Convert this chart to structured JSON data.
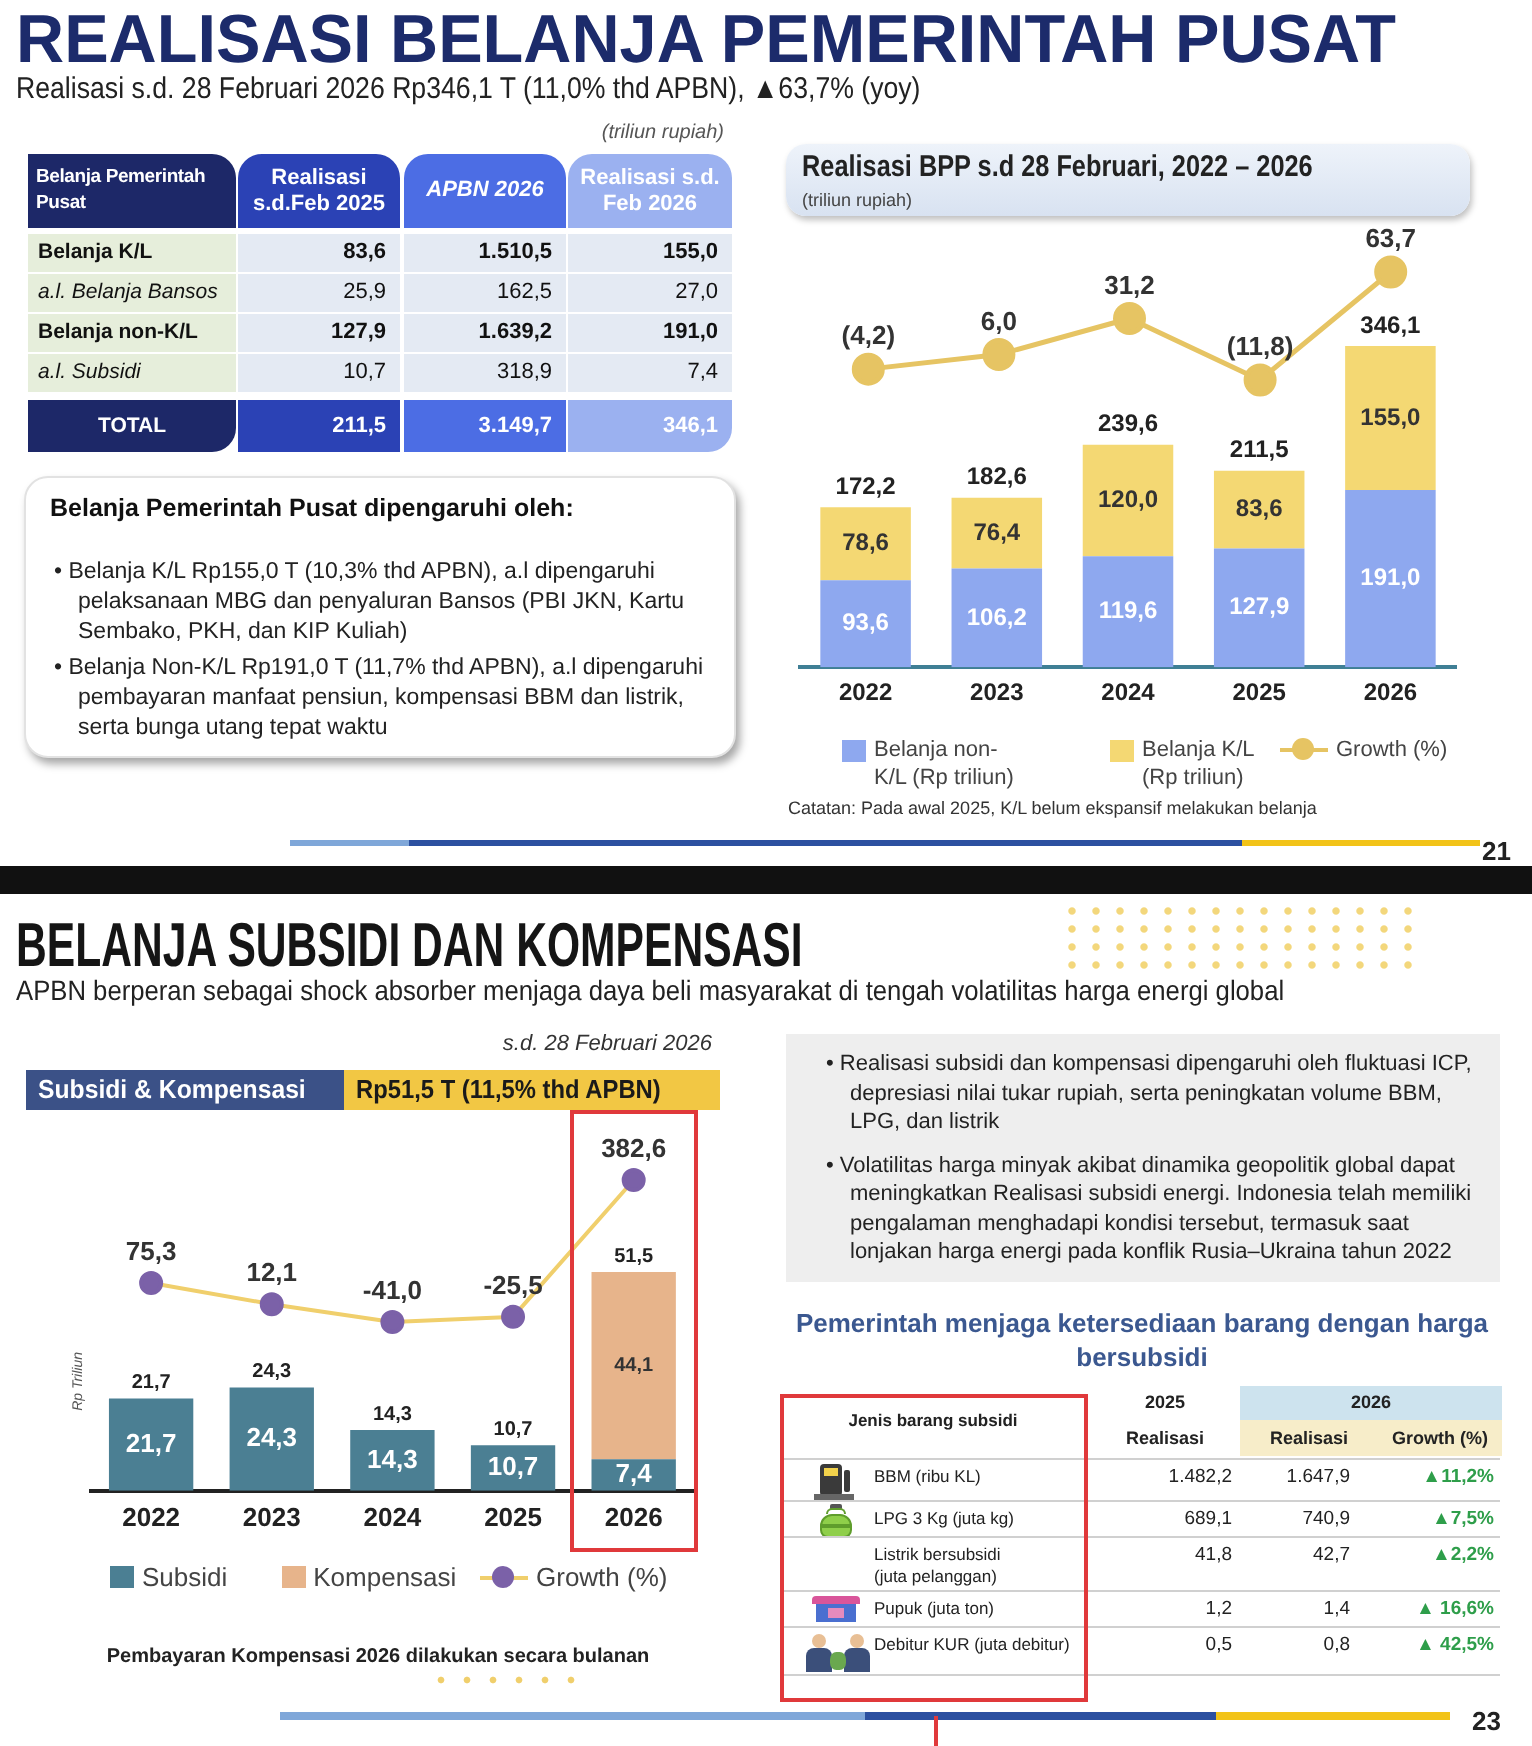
{
  "chart_data": [
    {
      "type": "other",
      "title": "REALISASI BELANJA PEMERINTAH PUSAT",
      "subtitle": "Realisasi s.d. 28 Februari 2026 Rp346,1 T (11,0% thd APBN), ▲63,7% (yoy)",
      "annotations": [
        "21"
      ]
    },
    {
      "type": "other",
      "ylabel": "Belanja Pemerintah Pusat",
      "categories": [
        "Realisasi s.d.Feb 2025",
        "APBN 2026",
        "Realisasi s.d. Feb 2026"
      ],
      "y_categories": [
        "Belanja K/L",
        "a.l. Belanja Bansos",
        "Belanja non-K/L",
        "a.l. Subsidi",
        "TOTAL"
      ],
      "cell_labels": [
        [
          "83,6",
          "1.510,5",
          "155,0"
        ],
        [
          "25,9",
          "162,5",
          "27,0"
        ],
        [
          "127,9",
          "1.639,2",
          "191,0"
        ],
        [
          "10,7",
          "318,9",
          "7,4"
        ],
        [
          "211,5",
          "3.149,7",
          "346,1"
        ]
      ],
      "annotations": [
        "(triliun rupiah)"
      ]
    },
    {
      "type": "other",
      "title": "Belanja Pemerintah Pusat dipengaruhi oleh:",
      "annotations": [
        "• Belanja K/L Rp155,0 T (10,3% thd APBN), a.l dipengaruhi pelaksanaan MBG dan penyaluran Bansos (PBI JKN, Kartu Sembako, PKH, dan KIP Kuliah)",
        "• Belanja Non-K/L Rp191,0 T (11,7% thd APBN), a.l dipengaruhi pembayaran manfaat pensiun, kompensasi BBM dan listrik, serta bunga utang tepat waktu"
      ]
    },
    {
      "type": "line",
      "title": "Realisasi BPP s.d 28 Februari, 2022 – 2026",
      "subtitle": "(triliun rupiah)",
      "categories": [
        null,
        null,
        null,
        null,
        null
      ],
      "series": [
        {
          "name": "Growth (%)",
          "color": "#e6c463",
          "values": [
            -4.2,
            6.0,
            31.2,
            -11.8,
            63.7
          ],
          "value_labels": [
            "(4,2)",
            "6,0",
            "31,2",
            "(11,8)",
            "63,7"
          ]
        }
      ],
      "tick_labels": false,
      "marker": "circle",
      "legend": "bottom"
    },
    {
      "type": "bar",
      "categories": [
        "2022",
        "2023",
        "2024",
        "2025",
        "2026"
      ],
      "stacked": true,
      "series": [
        {
          "name": "Belanja non-K/L (Rp triliun)",
          "color": "#8ea8ef",
          "values": [
            93.6,
            106.2,
            119.6,
            127.9,
            191.0
          ],
          "value_labels": [
            "93,6",
            "106,2",
            "119,6",
            "127,9",
            "191,0"
          ]
        },
        {
          "name": "Belanja K/L (Rp triliun)",
          "color": "#f4d873",
          "values": [
            78.6,
            76.4,
            120.0,
            83.6,
            155.0
          ],
          "value_labels": [
            "78,6",
            "76,4",
            "120,0",
            "83,6",
            "155,0"
          ]
        }
      ],
      "totals": [
        "172,2",
        "182,6",
        "239,6",
        "211,5",
        "346,1"
      ],
      "tick_labels": "x",
      "legend": "bottom",
      "annotations": [
        "Catatan: Pada awal 2025, K/L belum ekspansif melakukan belanja"
      ]
    },
    {
      "type": "other",
      "title": "BELANJA SUBSIDI DAN KOMPENSASI",
      "subtitle": "APBN berperan sebagai shock absorber menjaga daya beli masyarakat di tengah volatilitas harga energi global",
      "annotations": [
        "23"
      ]
    },
    {
      "type": "line",
      "title": "Subsidi & Kompensasi",
      "subtitle": "Rp51,5 T (11,5% thd APBN)",
      "categories": [
        null,
        null,
        null,
        null,
        null
      ],
      "series": [
        {
          "name": "Growth (%)",
          "color": "#f0cf6c",
          "colors": [
            "#7b61a8",
            "#7b61a8",
            "#7b61a8",
            "#7b61a8",
            "#7b61a8"
          ],
          "values": [
            75.3,
            12.1,
            -41.0,
            -25.5,
            382.6
          ],
          "value_labels": [
            "75,3",
            "12,1",
            "-41,0",
            "-25,5",
            "382,6"
          ]
        }
      ],
      "tick_labels": false,
      "marker": "circle",
      "legend": "bottom",
      "annotations": [
        "s.d. 28 Februari 2026"
      ]
    },
    {
      "type": "bar",
      "ylabel": "Rp Triliun",
      "categories": [
        "2022",
        "2023",
        "2024",
        "2025",
        "2026"
      ],
      "stacked": true,
      "series": [
        {
          "name": "Subsidi",
          "color": "#4b7f93",
          "values": [
            21.7,
            24.3,
            14.3,
            10.7,
            7.4
          ],
          "value_labels": [
            "21,7",
            "24,3",
            "14,3",
            "10,7",
            "7,4"
          ]
        },
        {
          "name": "Kompensasi",
          "color": "#e7b48b",
          "values": [
            null,
            null,
            null,
            null,
            44.1
          ],
          "value_labels": [
            null,
            null,
            null,
            null,
            "44,1"
          ]
        }
      ],
      "totals": [
        "21,7",
        "24,3",
        "14,3",
        "10,7",
        "51,5"
      ],
      "tick_labels": "x",
      "legend": "bottom",
      "annotations": [
        "Pembayaran Kompensasi 2026 dilakukan secara bulanan"
      ]
    },
    {
      "type": "other",
      "annotations": [
        "• Realisasi subsidi dan kompensasi dipengaruhi oleh fluktuasi ICP, depresiasi nilai tukar rupiah, serta peningkatan volume BBM, LPG, dan listrik",
        "• Volatilitas harga minyak akibat dinamika geopolitik global dapat meningkatkan Realisasi subsidi energi. Indonesia telah memiliki pengalaman menghadapi kondisi tersebut, termasuk saat lonjakan harga energi pada konflik Rusia–Ukraina tahun 2022"
      ]
    },
    {
      "type": "other",
      "title": "Pemerintah menjaga ketersediaan barang dengan harga bersubsidi",
      "ylabel": "Jenis barang subsidi",
      "annotations": [
        "2025",
        "2026"
      ],
      "categories": [
        "Realisasi",
        "Realisasi",
        "Growth (%)"
      ],
      "y_categories": [
        "BBM (ribu KL)",
        "LPG 3 Kg (juta kg)",
        "Listrik bersubsidi (juta pelanggan)",
        "Pupuk (juta ton)",
        "Debitur KUR (juta debitur)"
      ],
      "cell_labels": [
        [
          "1.482,2",
          "1.647,9",
          "▲11,2%"
        ],
        [
          "689,1",
          "740,9",
          "▲7,5%"
        ],
        [
          "41,8",
          "42,7",
          "▲2,2%"
        ],
        [
          "1,2",
          "1,4",
          "▲ 16,6%"
        ],
        [
          "0,5",
          "0,8",
          "▲ 42,5%"
        ]
      ]
    }
  ]
}
